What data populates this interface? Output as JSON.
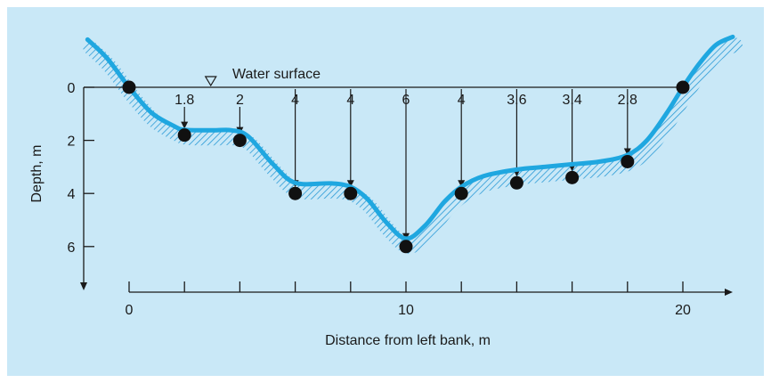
{
  "chart_data": {
    "type": "line",
    "title": "",
    "water_surface_label": "Water surface",
    "xlabel": "Distance from left bank, m",
    "ylabel": "Depth, m",
    "x_ticks": [
      0,
      2,
      4,
      6,
      8,
      10,
      12,
      14,
      16,
      18,
      20
    ],
    "x_tick_labels": [
      {
        "x": 0,
        "label": "0"
      },
      {
        "x": 10,
        "label": "10"
      },
      {
        "x": 20,
        "label": "20"
      }
    ],
    "y_ticks": [
      {
        "y": 0,
        "label": "0"
      },
      {
        "y": 2,
        "label": "2"
      },
      {
        "y": 4,
        "label": "4"
      },
      {
        "y": 6,
        "label": "6"
      }
    ],
    "xlim": [
      -1.5,
      21.8
    ],
    "ylim": [
      7.4,
      -1.8
    ],
    "y_inverted": true,
    "measurements": [
      {
        "x": 0,
        "depth": 0,
        "label": ""
      },
      {
        "x": 2,
        "depth": 1.8,
        "label": "1.8"
      },
      {
        "x": 4,
        "depth": 2,
        "label": "2"
      },
      {
        "x": 6,
        "depth": 4,
        "label": "4"
      },
      {
        "x": 8,
        "depth": 4,
        "label": "4"
      },
      {
        "x": 10,
        "depth": 6,
        "label": "6"
      },
      {
        "x": 12,
        "depth": 4,
        "label": "4"
      },
      {
        "x": 14,
        "depth": 3.6,
        "label": "3.6"
      },
      {
        "x": 16,
        "depth": 3.4,
        "label": "3.4"
      },
      {
        "x": 18,
        "depth": 2.8,
        "label": "2.8"
      },
      {
        "x": 20,
        "depth": 0,
        "label": ""
      }
    ],
    "channel_profile": {
      "x": [
        -1.5,
        -0.8,
        0,
        0.8,
        1.6,
        2,
        3,
        3.7,
        4.3,
        5.2,
        6,
        7.3,
        8,
        8.6,
        9.3,
        10,
        10.7,
        11.4,
        12,
        12.8,
        14,
        15,
        16,
        17,
        18,
        18.7,
        19.4,
        20,
        20.6,
        21.2,
        21.8
      ],
      "depth": [
        -1.8,
        -1.1,
        0,
        0.95,
        1.45,
        1.6,
        1.62,
        1.62,
        1.85,
        2.9,
        3.6,
        3.62,
        3.75,
        4.2,
        5.1,
        5.7,
        5.2,
        4.3,
        3.75,
        3.35,
        3.1,
        3.0,
        2.9,
        2.8,
        2.55,
        2.0,
        1.0,
        0,
        -0.9,
        -1.6,
        -1.9
      ]
    },
    "colors": {
      "background": "#c9e8f7",
      "channel_line": "#1fa7e0",
      "ground_hatch": "#2a9ad6",
      "points": "#111111",
      "axes": "#1a1a1a"
    },
    "grid": false
  }
}
